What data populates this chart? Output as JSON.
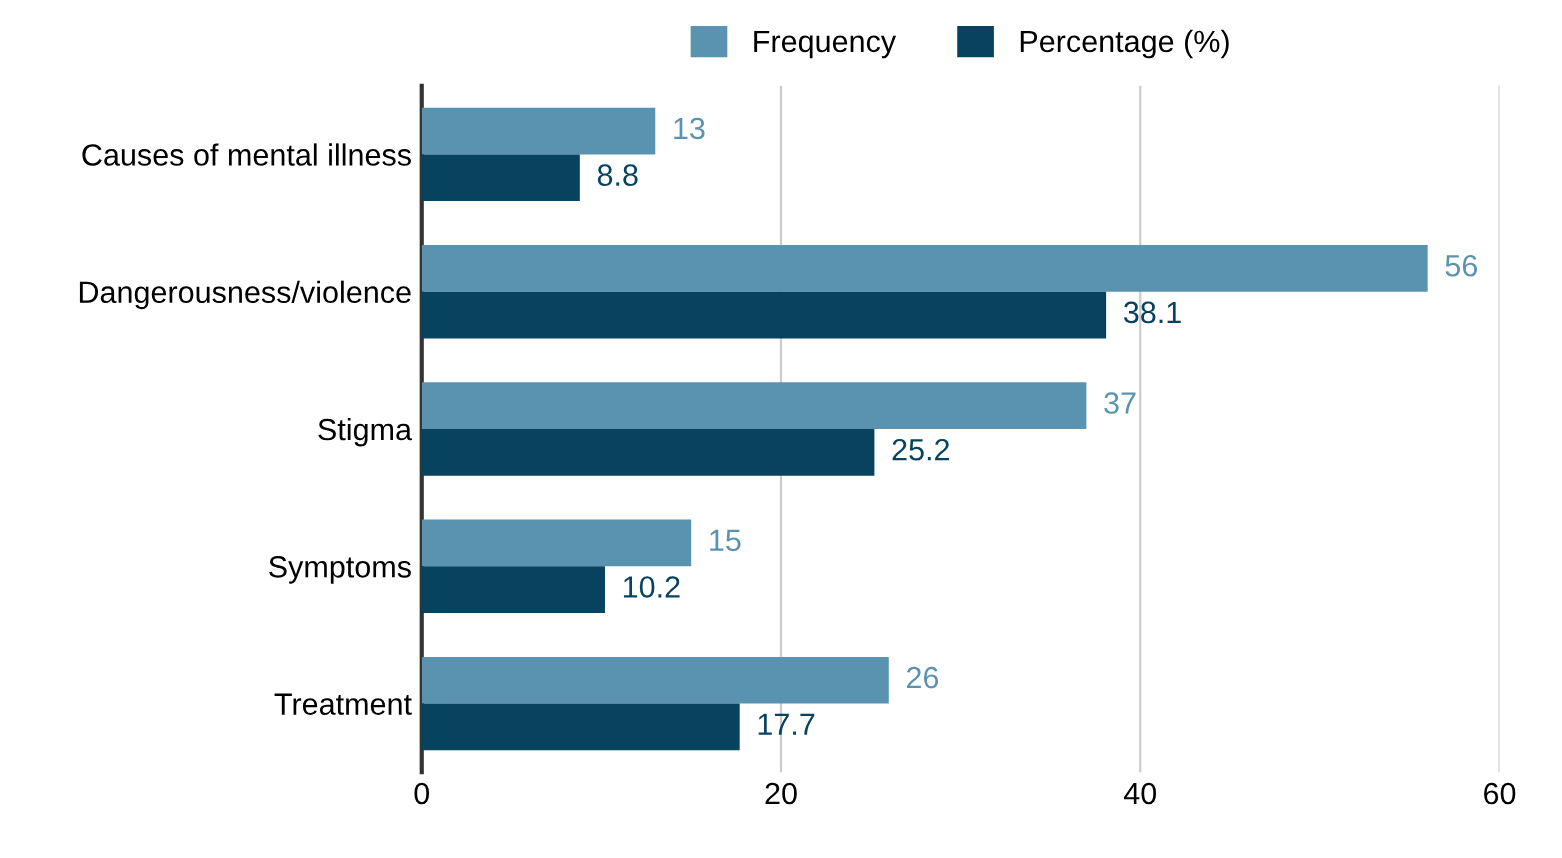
{
  "chart_data": {
    "type": "bar",
    "orientation": "horizontal",
    "categories": [
      "Causes of mental illness",
      "Dangerousness/violence",
      "Stigma",
      "Symptoms",
      "Treatment"
    ],
    "series": [
      {
        "name": "Frequency",
        "color": "#5a93b0",
        "values": [
          13,
          56,
          37,
          15,
          26
        ]
      },
      {
        "name": "Percentage (%)",
        "color": "#07425e",
        "values": [
          8.8,
          38.1,
          25.2,
          10.2,
          17.7
        ]
      }
    ],
    "xlim": [
      0,
      60
    ],
    "xticks": [
      0,
      20,
      40,
      60
    ],
    "grid": "x",
    "legend": "top",
    "data_labels": true
  }
}
